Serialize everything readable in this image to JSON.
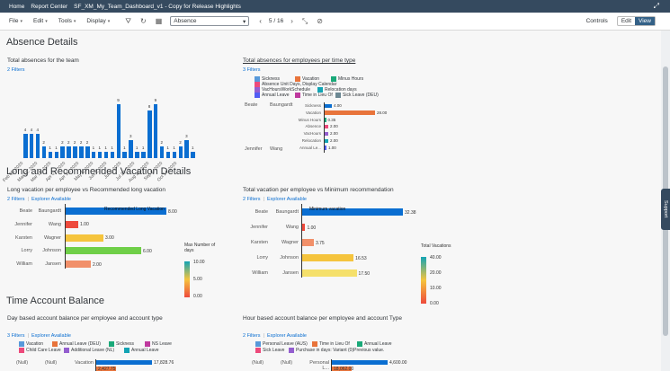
{
  "topbar": {
    "home": "Home",
    "report_center": "Report Center",
    "title": "SF_XM_My_Team_Dashboard_v1 - Copy for Release Highlights"
  },
  "toolbar": {
    "file": "File",
    "edit": "Edit",
    "tools": "Tools",
    "display": "Display",
    "page_select": "Absence",
    "page_indicator": "5 / 16",
    "controls": "Controls",
    "edit_btn": "Edit",
    "view_btn": "View"
  },
  "support": "Support",
  "sections": {
    "absence": "Absence Details",
    "vacation": "Long and Recommended Vacation Details",
    "time_account": "Time Account Balance"
  },
  "c1": {
    "title": "Total absences for the team",
    "filters": "2 Filters",
    "months": [
      "Feb 05, 2020",
      "Feb 26, 2020",
      "Mar 18, 2020",
      "Apr 08, 2020",
      "Apr 29, 2020",
      "May 20, 2020",
      "Jun 10, 2020",
      "Jul 01, 2020",
      "Jul 22, 2020",
      "Aug 12, 2020",
      "Sep 02, 2020"
    ],
    "tick_labels": [
      "Feb 05, 2020",
      "Mar 11, 2020",
      "Mar 18, 2020",
      "Apr 01, 2020",
      "Apr 15, 2020",
      "May 6, 2020",
      "Jun 3, 2020",
      "Jul 1, 2020",
      "Jul 22, 2020",
      "Aug 12, 2020",
      "Sep 2, 2020",
      "Oct 14, 2020"
    ]
  },
  "c2": {
    "title": "Total absences for employees per time type",
    "filters": "3 Filters",
    "legend": [
      {
        "label": "Sickness",
        "color": "#5899da"
      },
      {
        "label": "Vacation",
        "color": "#e8743b"
      },
      {
        "label": "Minus Hours",
        "color": "#19a979"
      },
      {
        "label": "Absence Unit Days, Display Calendar",
        "color": "#ed4a7b"
      },
      {
        "label": "VacHoursWorkSchedule",
        "color": "#945ecf"
      },
      {
        "label": "Relocation days",
        "color": "#13a4b4"
      },
      {
        "label": "Annual Leave",
        "color": "#525df4"
      },
      {
        "label": "Time in Lieu Of",
        "color": "#bf399e"
      },
      {
        "label": "Sick Leave (DEU)",
        "color": "#6c8893"
      }
    ],
    "first": "Beate",
    "last": "Baungardt",
    "last2": "Jennifer",
    "last2b": "Wang",
    "rows": [
      {
        "label": "Sickness",
        "value": "4.00"
      },
      {
        "label": "Vacation",
        "value": "28.00"
      },
      {
        "label": "Minus Hours",
        "value": "0.35"
      },
      {
        "label": "Absence",
        "value": "2.00"
      },
      {
        "label": "VacHours",
        "value": "2.00"
      },
      {
        "label": "Relocation",
        "value": "2.00"
      },
      {
        "label": "Annual Le...",
        "value": "1.00"
      }
    ]
  },
  "c3": {
    "title": "Long vacation per employee vs Recommended long vacation",
    "filters": "2 Filters",
    "explorer": "Explorer Available",
    "ref_label": "Recommended Long Vacation",
    "legend_title": "Max Number of days",
    "scale": [
      "10.00",
      "5.00",
      "0.00"
    ],
    "rows": [
      {
        "first": "Beate",
        "last": "Baungardt",
        "value": "8.00"
      },
      {
        "first": "Jennifer",
        "last": "Wang",
        "value": "1.00"
      },
      {
        "first": "Karsten",
        "last": "Wagner",
        "value": "3.00"
      },
      {
        "first": "Lorry",
        "last": "Johnson",
        "value": "6.00"
      },
      {
        "first": "William",
        "last": "Jansen",
        "value": "2.00"
      }
    ]
  },
  "c4": {
    "title": "Total vacation per employee vs Minimum recommendation",
    "filters": "2 Filters",
    "explorer": "Explorer Available",
    "ref_label": "Minimum vacation",
    "legend_title": "Total Vacations",
    "scale": [
      "40.00",
      "20.00",
      "10.00",
      "0.00"
    ],
    "rows": [
      {
        "first": "Beate",
        "last": "Baungardt",
        "value": "32.38"
      },
      {
        "first": "Jennifer",
        "last": "Wang",
        "value": "1.00"
      },
      {
        "first": "Karsten",
        "last": "Wagner",
        "value": "3.75"
      },
      {
        "first": "Lorry",
        "last": "Johnson",
        "value": "16.53"
      },
      {
        "first": "William",
        "last": "Jansen",
        "value": "17.50"
      }
    ]
  },
  "c5": {
    "title": "Day based account balance per employee and account type",
    "filters": "3 Filters",
    "explorer": "Explorer Available",
    "legend": [
      {
        "label": "Vacation",
        "color": "#5899da"
      },
      {
        "label": "Annual Leave (DEU)",
        "color": "#e8743b"
      },
      {
        "label": "Sickness",
        "color": "#19a979"
      },
      {
        "label": "NS Leave",
        "color": "#bf399e"
      },
      {
        "label": "Child Care Leave",
        "color": "#ed4a7b"
      },
      {
        "label": "Additional Leave (NL)",
        "color": "#945ecf"
      },
      {
        "label": "Annual Leave",
        "color": "#13a4b4"
      }
    ],
    "row": {
      "c1": "(Null)",
      "c2": "(Null)",
      "c3": "Vacation",
      "v1": "17,828.76",
      "v2": "2,427.75"
    }
  },
  "c6": {
    "title": "Hour based account balance per employee and account Type",
    "filters": "2 Filters",
    "explorer": "Explorer Available",
    "legend": [
      {
        "label": "Personal Leave (AUS)",
        "color": "#5899da"
      },
      {
        "label": "Time in Lieu Of",
        "color": "#e8743b"
      },
      {
        "label": "Annual Leave",
        "color": "#19a979"
      },
      {
        "label": "Sick Leave",
        "color": "#ed4a7b"
      },
      {
        "label": "Purchase in days: Variant (0)Previous value.",
        "color": "#945ecf"
      }
    ],
    "row": {
      "c1": "(Null)",
      "c2": "(Null)",
      "c3": "Personal L...",
      "v1": "4,600.00",
      "v2": "18,062.00"
    }
  },
  "chart_data": [
    {
      "type": "bar",
      "title": "Total absences for the team",
      "values": [
        4,
        4,
        4,
        2,
        1,
        1,
        2,
        2,
        2,
        2,
        2,
        1,
        1,
        1,
        1,
        9,
        1,
        3,
        1,
        1,
        8,
        9,
        2,
        1,
        1,
        2,
        3,
        1
      ],
      "ylim": [
        0,
        9
      ]
    },
    {
      "type": "bar",
      "title": "Total absences for employees per time type",
      "categories": [
        "Sickness",
        "Vacation",
        "Minus Hours",
        "Absence",
        "VacHours",
        "Relocation",
        "Annual Le..."
      ],
      "values": [
        4.0,
        28.0,
        0.35,
        2.0,
        2.0,
        2.0,
        1.0
      ]
    },
    {
      "type": "bar",
      "title": "Long vacation per employee vs Recommended long vacation",
      "categories": [
        "Beate Baungardt",
        "Jennifer Wang",
        "Karsten Wagner",
        "Lorry Johnson",
        "William Jansen"
      ],
      "values": [
        8,
        1,
        3,
        6,
        2
      ],
      "reference": 8
    },
    {
      "type": "bar",
      "title": "Total vacation per employee vs Minimum recommendation",
      "categories": [
        "Beate Baungardt",
        "Jennifer Wang",
        "Karsten Wagner",
        "Lorry Johnson",
        "William Jansen"
      ],
      "values": [
        32.38,
        1.0,
        3.75,
        16.53,
        17.5
      ]
    }
  ]
}
